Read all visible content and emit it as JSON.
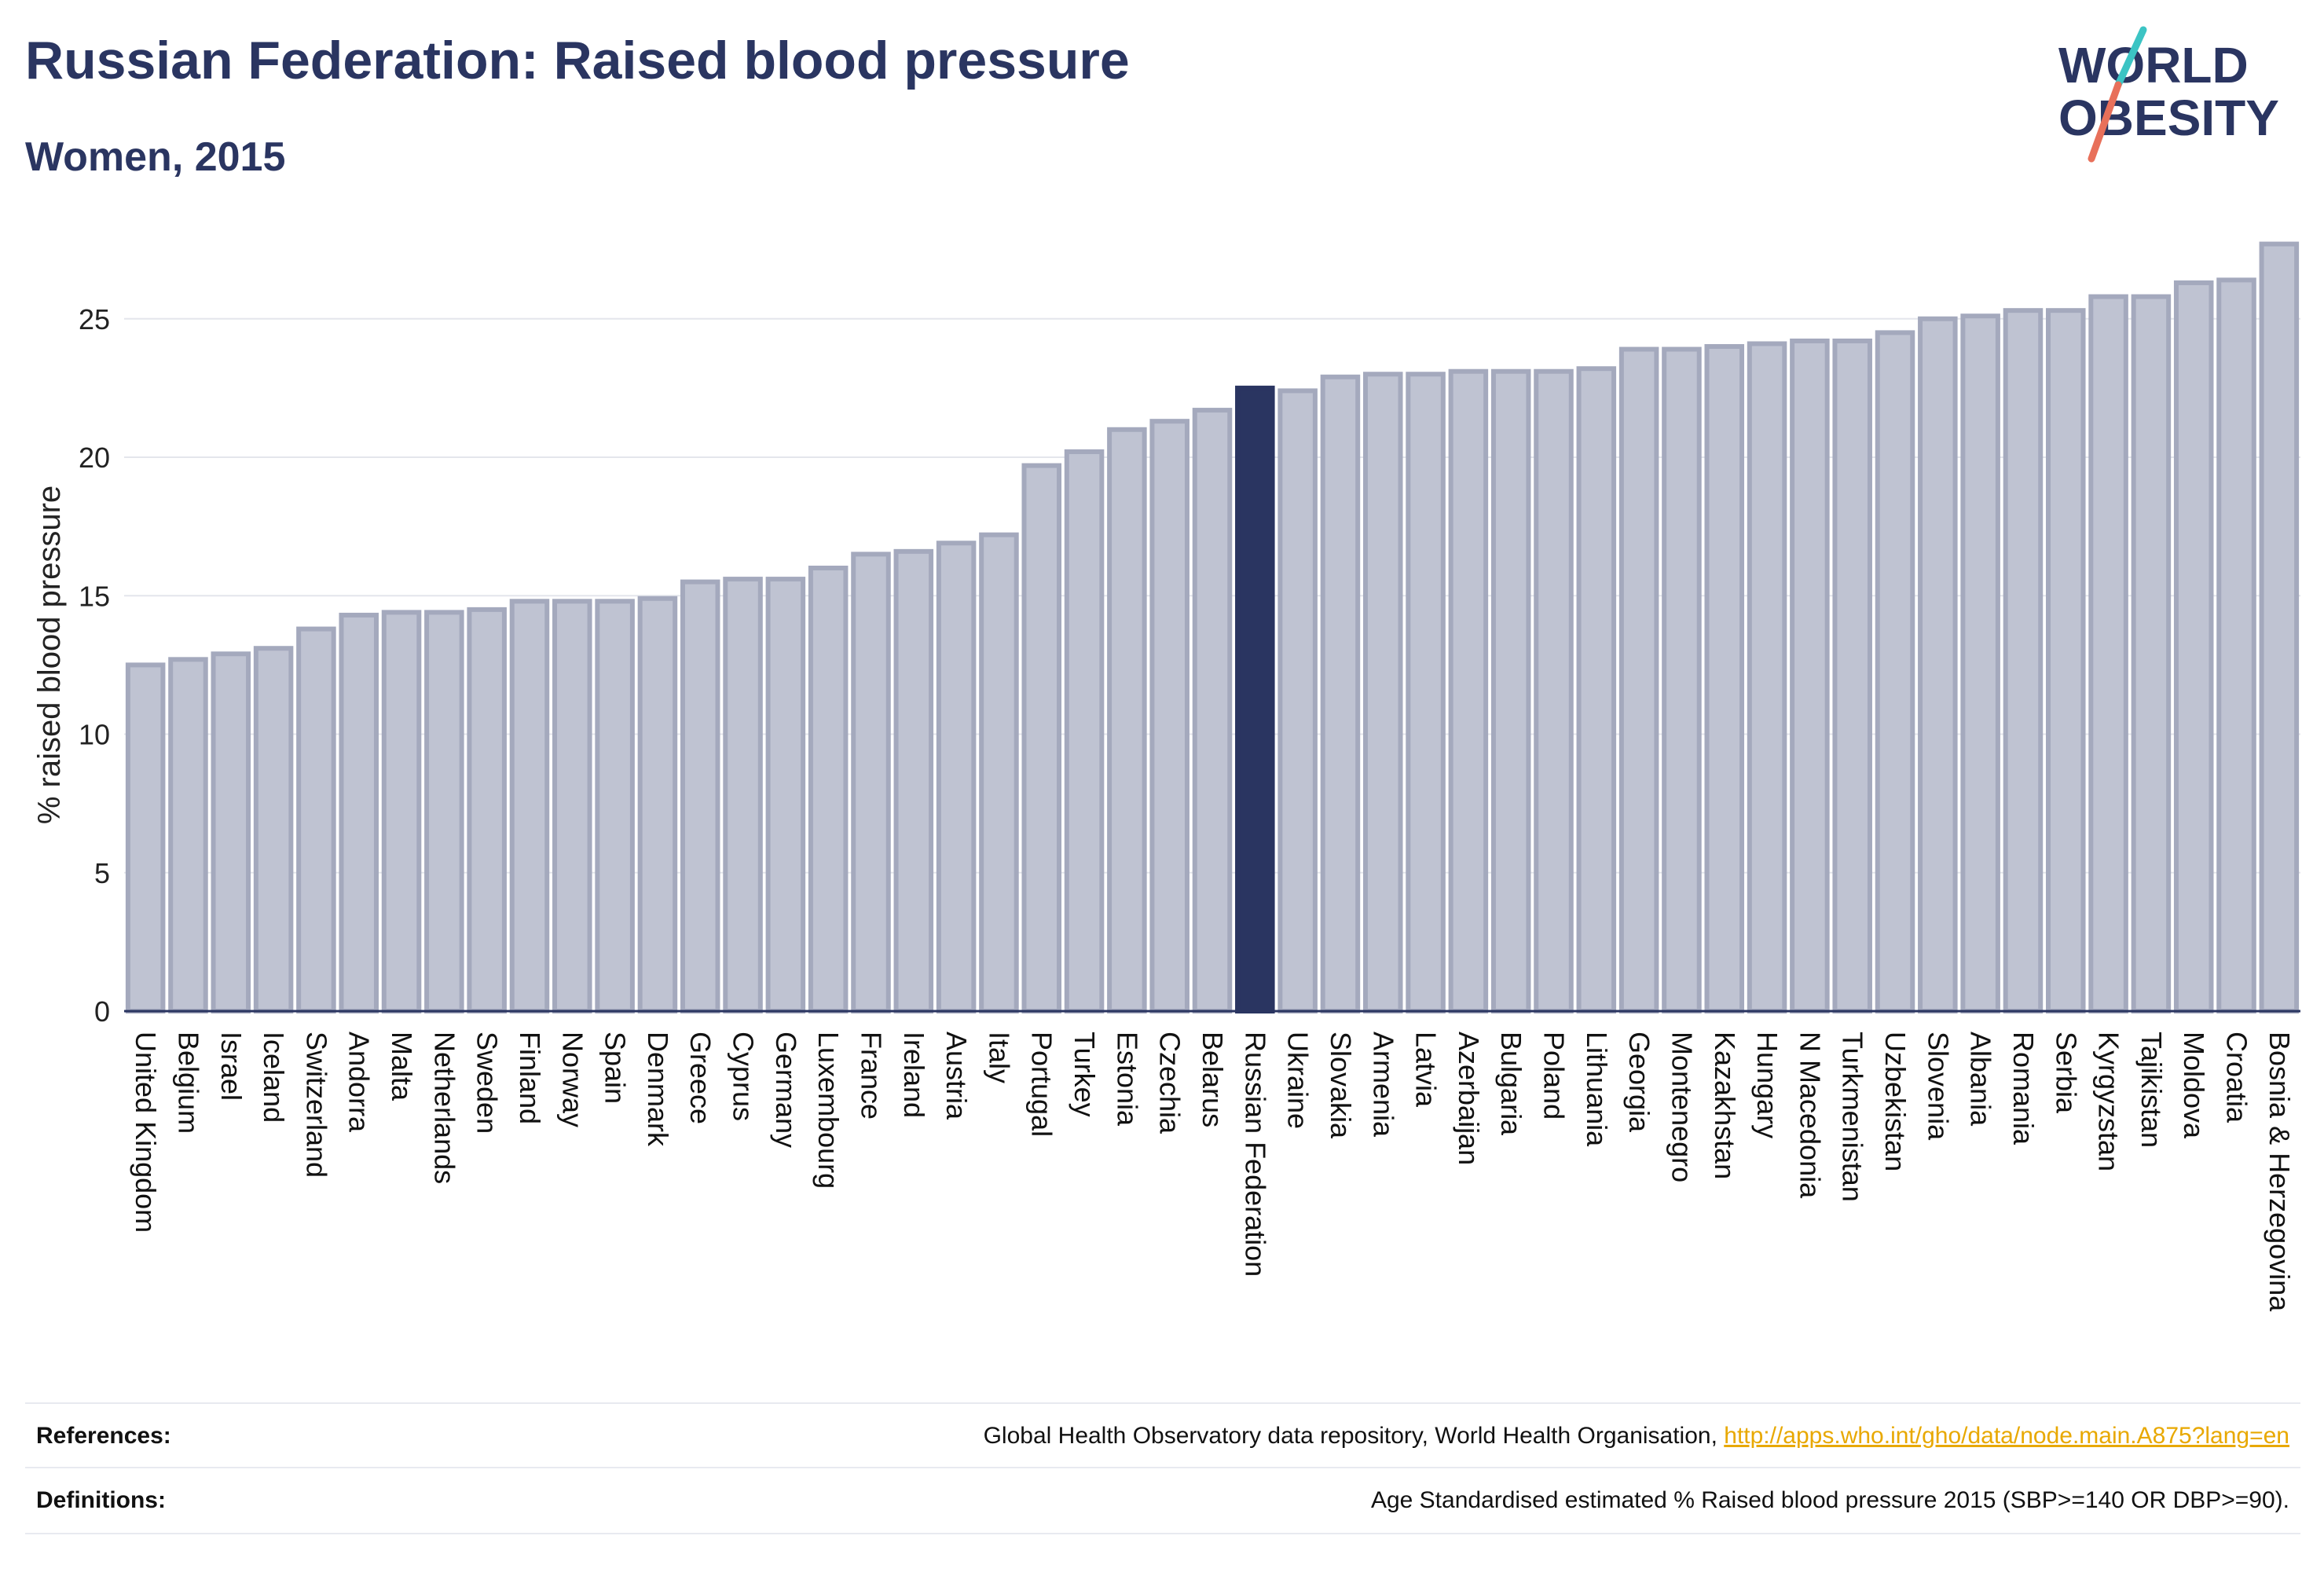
{
  "header": {
    "title": "Russian Federation: Raised blood pressure",
    "subtitle": "Women, 2015"
  },
  "logo": {
    "line1": "WORLD",
    "line2": "OBESITY",
    "colors": {
      "text": "#2a3561",
      "slash_teal": "#3cc4c4",
      "slash_coral": "#e8705a"
    }
  },
  "chart_data": {
    "type": "bar",
    "ylabel": "% raised blood pressure",
    "xlabel": "",
    "ylim": [
      0,
      28
    ],
    "yticks": [
      0,
      5,
      10,
      15,
      20,
      25
    ],
    "grid": true,
    "highlight": "Russian Federation",
    "colors": {
      "bar": "#bfc3d2",
      "bar_edge": "#a4a9bd",
      "highlight": "#2a3561",
      "grid": "#e4e6ec"
    },
    "categories": [
      "United Kingdom",
      "Belgium",
      "Israel",
      "Iceland",
      "Switzerland",
      "Andorra",
      "Malta",
      "Netherlands",
      "Sweden",
      "Finland",
      "Norway",
      "Spain",
      "Denmark",
      "Greece",
      "Cyprus",
      "Germany",
      "Luxembourg",
      "France",
      "Ireland",
      "Austria",
      "Italy",
      "Portugal",
      "Turkey",
      "Estonia",
      "Czechia",
      "Belarus",
      "Russian Federation",
      "Ukraine",
      "Slovakia",
      "Armenia",
      "Latvia",
      "Azerbaijan",
      "Bulgaria",
      "Poland",
      "Lithuania",
      "Georgia",
      "Montenegro",
      "Kazakhstan",
      "Hungary",
      "N Macedonia",
      "Turkmenistan",
      "Uzbekistan",
      "Slovenia",
      "Albania",
      "Romania",
      "Serbia",
      "Kyrgyzstan",
      "Tajikistan",
      "Moldova",
      "Croatia",
      "Bosnia & Herzegovina"
    ],
    "values": [
      12.5,
      12.7,
      12.9,
      13.1,
      13.8,
      14.3,
      14.4,
      14.4,
      14.5,
      14.8,
      14.8,
      14.8,
      14.9,
      15.5,
      15.6,
      15.6,
      16.0,
      16.5,
      16.6,
      16.9,
      17.2,
      19.7,
      20.2,
      21.0,
      21.3,
      21.7,
      22.5,
      22.4,
      22.9,
      23.0,
      23.0,
      23.1,
      23.1,
      23.1,
      23.2,
      23.9,
      23.9,
      24.0,
      24.1,
      24.2,
      24.2,
      24.5,
      25.0,
      25.1,
      25.3,
      25.3,
      25.8,
      25.8,
      26.3,
      26.4,
      27.7
    ]
  },
  "footer": {
    "references_label": "References:",
    "references_text": "Global Health Observatory data repository, World Health Organisation, ",
    "references_link": "http://apps.who.int/gho/data/node.main.A875?lang=en",
    "definitions_label": "Definitions:",
    "definitions_text": "Age Standardised estimated % Raised blood pressure 2015 (SBP>=140 OR DBP>=90)."
  }
}
